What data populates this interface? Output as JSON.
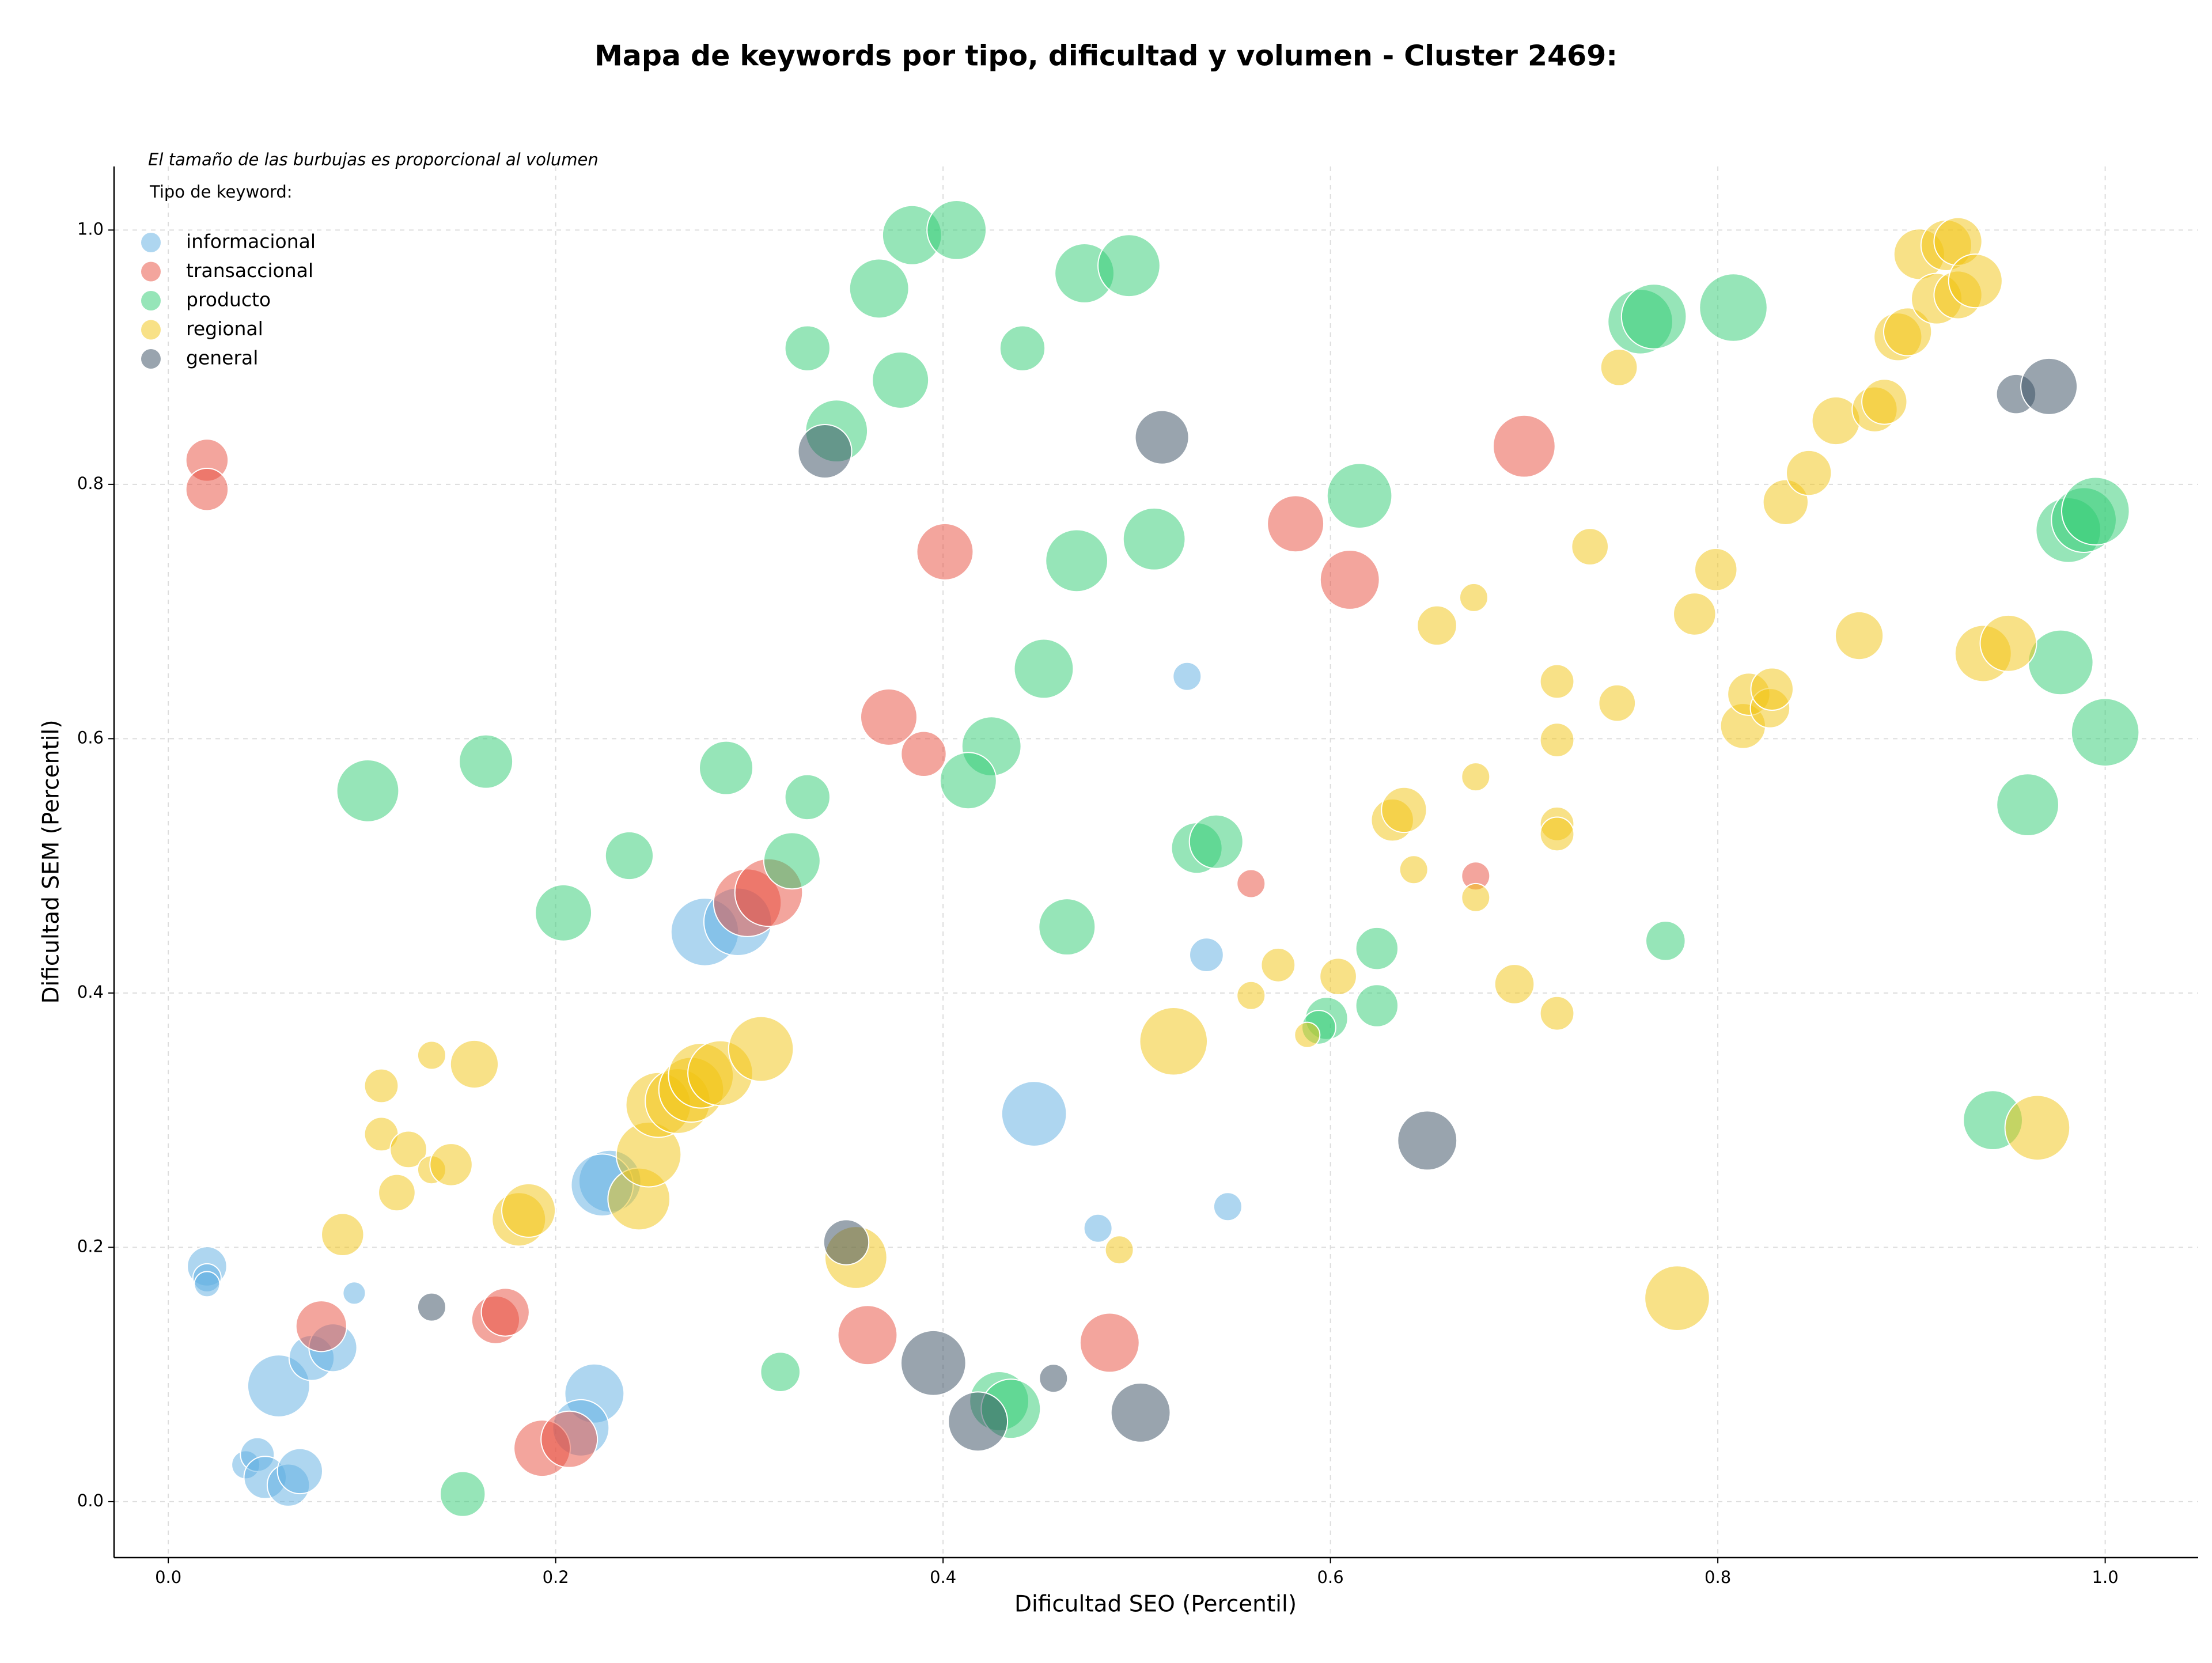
{
  "chart_data": {
    "type": "scatter",
    "title": "Mapa de keywords por tipo, dificultad y volumen - Cluster 2469:",
    "note": "El tamaño de las burbujas es proporcional al volumen",
    "legend_title": "Tipo de keyword:",
    "legend": "upper left",
    "grid": true,
    "x_label": "Dificultad SEO (Percentil)",
    "y_label": "Dificultad SEM (Percentil)",
    "xlim": [
      -0.028,
      1.048
    ],
    "ylim": [
      -0.044,
      1.05
    ],
    "xticks": [
      {
        "value": 0,
        "label": "0.0"
      },
      0.2,
      0.4,
      0.6,
      0.8,
      {
        "value": 1,
        "label": "1.0"
      }
    ],
    "yticks": [
      {
        "value": 0,
        "label": "0.0"
      },
      0.2,
      0.4,
      0.6,
      0.8,
      {
        "value": 1,
        "label": "1.0"
      }
    ],
    "series": [
      {
        "name": "informacional",
        "color": "#5dade2",
        "x": [
          0.02,
          0.02,
          0.02,
          0.096,
          0.057,
          0.074,
          0.085,
          0.04,
          0.046,
          0.05,
          0.062,
          0.068,
          0.22,
          0.213,
          0.228,
          0.224,
          0.277,
          0.294,
          0.447,
          0.526,
          0.536,
          0.547,
          0.48
        ],
        "y": [
          0.185,
          0.176,
          0.171,
          0.164,
          0.091,
          0.113,
          0.121,
          0.029,
          0.037,
          0.019,
          0.013,
          0.024,
          0.085,
          0.058,
          0.252,
          0.249,
          0.448,
          0.456,
          0.305,
          0.649,
          0.43,
          0.232,
          0.215
        ],
        "sizes": [
          196,
          100,
          81,
          64,
          484,
          256,
          289,
          100,
          144,
          225,
          225,
          256,
          441,
          400,
          484,
          484,
          576,
          576,
          529,
          100,
          144,
          100,
          100
        ]
      },
      {
        "name": "transaccional",
        "color": "#e74c3c",
        "x": [
          0.02,
          0.02,
          0.079,
          0.169,
          0.174,
          0.193,
          0.207,
          0.372,
          0.39,
          0.299,
          0.31,
          0.401,
          0.361,
          0.486,
          0.559,
          0.582,
          0.61,
          0.675,
          0.7
        ],
        "y": [
          0.819,
          0.796,
          0.138,
          0.143,
          0.149,
          0.042,
          0.049,
          0.617,
          0.588,
          0.471,
          0.479,
          0.747,
          0.131,
          0.125,
          0.486,
          0.769,
          0.725,
          0.492,
          0.83
        ],
        "sizes": [
          225,
          225,
          324,
          289,
          289,
          400,
          400,
          400,
          256,
          576,
          576,
          400,
          441,
          441,
          100,
          400,
          441,
          100,
          484
        ]
      },
      {
        "name": "producto",
        "color": "#2ecc71",
        "x": [
          0.103,
          0.164,
          0.204,
          0.238,
          0.288,
          0.33,
          0.322,
          0.33,
          0.345,
          0.367,
          0.384,
          0.407,
          0.378,
          0.441,
          0.473,
          0.496,
          0.425,
          0.413,
          0.452,
          0.469,
          0.509,
          0.464,
          0.531,
          0.541,
          0.615,
          0.624,
          0.624,
          0.598,
          0.594,
          0.316,
          0.152,
          0.429,
          0.435,
          0.76,
          0.767,
          0.808,
          0.773,
          0.942,
          0.96,
          0.977,
          1.0,
          0.981,
          0.989,
          0.995
        ],
        "y": [
          0.559,
          0.582,
          0.463,
          0.508,
          0.577,
          0.554,
          0.504,
          0.907,
          0.842,
          0.954,
          0.996,
          1.0,
          0.882,
          0.907,
          0.966,
          0.972,
          0.594,
          0.567,
          0.655,
          0.74,
          0.757,
          0.452,
          0.514,
          0.519,
          0.791,
          0.435,
          0.39,
          0.38,
          0.373,
          0.102,
          0.006,
          0.079,
          0.073,
          0.928,
          0.932,
          0.939,
          0.441,
          0.3,
          0.548,
          0.66,
          0.605,
          0.764,
          0.772,
          0.779
        ],
        "sizes": [
          484,
          361,
          400,
          289,
          361,
          256,
          400,
          256,
          484,
          441,
          441,
          441,
          400,
          256,
          441,
          484,
          441,
          400,
          441,
          484,
          484,
          400,
          324,
          361,
          529,
          225,
          225,
          225,
          144,
          196,
          256,
          441,
          441,
          529,
          529,
          576,
          196,
          441,
          484,
          529,
          576,
          529,
          529,
          576
        ]
      },
      {
        "name": "regional",
        "color": "#f1c40f",
        "x": [
          0.11,
          0.11,
          0.136,
          0.124,
          0.136,
          0.146,
          0.118,
          0.09,
          0.158,
          0.181,
          0.186,
          0.243,
          0.248,
          0.253,
          0.263,
          0.27,
          0.275,
          0.285,
          0.306,
          0.355,
          0.519,
          0.491,
          0.559,
          0.573,
          0.588,
          0.604,
          0.632,
          0.638,
          0.643,
          0.655,
          0.674,
          0.675,
          0.675,
          0.695,
          0.717,
          0.717,
          0.717,
          0.717,
          0.717,
          0.734,
          0.748,
          0.749,
          0.779,
          0.788,
          0.799,
          0.813,
          0.816,
          0.827,
          0.828,
          0.835,
          0.847,
          0.861,
          0.873,
          0.881,
          0.886,
          0.893,
          0.898,
          0.904,
          0.913,
          0.918,
          0.924,
          0.924,
          0.933,
          0.937,
          0.95,
          0.965
        ],
        "y": [
          0.327,
          0.289,
          0.351,
          0.277,
          0.261,
          0.265,
          0.243,
          0.21,
          0.344,
          0.222,
          0.229,
          0.238,
          0.273,
          0.312,
          0.315,
          0.324,
          0.335,
          0.337,
          0.356,
          0.192,
          0.362,
          0.198,
          0.398,
          0.422,
          0.367,
          0.413,
          0.536,
          0.544,
          0.497,
          0.689,
          0.711,
          0.57,
          0.475,
          0.407,
          0.645,
          0.599,
          0.533,
          0.525,
          0.384,
          0.751,
          0.628,
          0.892,
          0.16,
          0.698,
          0.733,
          0.61,
          0.635,
          0.624,
          0.639,
          0.786,
          0.809,
          0.85,
          0.681,
          0.859,
          0.865,
          0.916,
          0.92,
          0.981,
          0.946,
          0.988,
          0.991,
          0.949,
          0.96,
          0.667,
          0.675,
          0.294
        ],
        "sizes": [
          144,
          144,
          100,
          169,
          100,
          225,
          169,
          225,
          289,
          361,
          361,
          484,
          529,
          529,
          529,
          529,
          529,
          529,
          529,
          484,
          576,
          100,
          100,
          144,
          81,
          169,
          225,
          256,
          100,
          196,
          100,
          100,
          100,
          196,
          144,
          144,
          144,
          144,
          144,
          169,
          169,
          169,
          529,
          225,
          225,
          256,
          225,
          196,
          225,
          256,
          256,
          289,
          289,
          256,
          256,
          289,
          289,
          324,
          324,
          324,
          289,
          289,
          361,
          400,
          400,
          529
        ]
      },
      {
        "name": "general",
        "color": "#34495e",
        "x": [
          0.136,
          0.339,
          0.35,
          0.395,
          0.418,
          0.457,
          0.502,
          0.513,
          0.65,
          0.954,
          0.971
        ],
        "y": [
          0.153,
          0.826,
          0.204,
          0.109,
          0.063,
          0.097,
          0.07,
          0.837,
          0.284,
          0.871,
          0.877
        ],
        "sizes": [
          100,
          361,
          256,
          529,
          441,
          100,
          441,
          361,
          441,
          196,
          400
        ]
      }
    ]
  }
}
